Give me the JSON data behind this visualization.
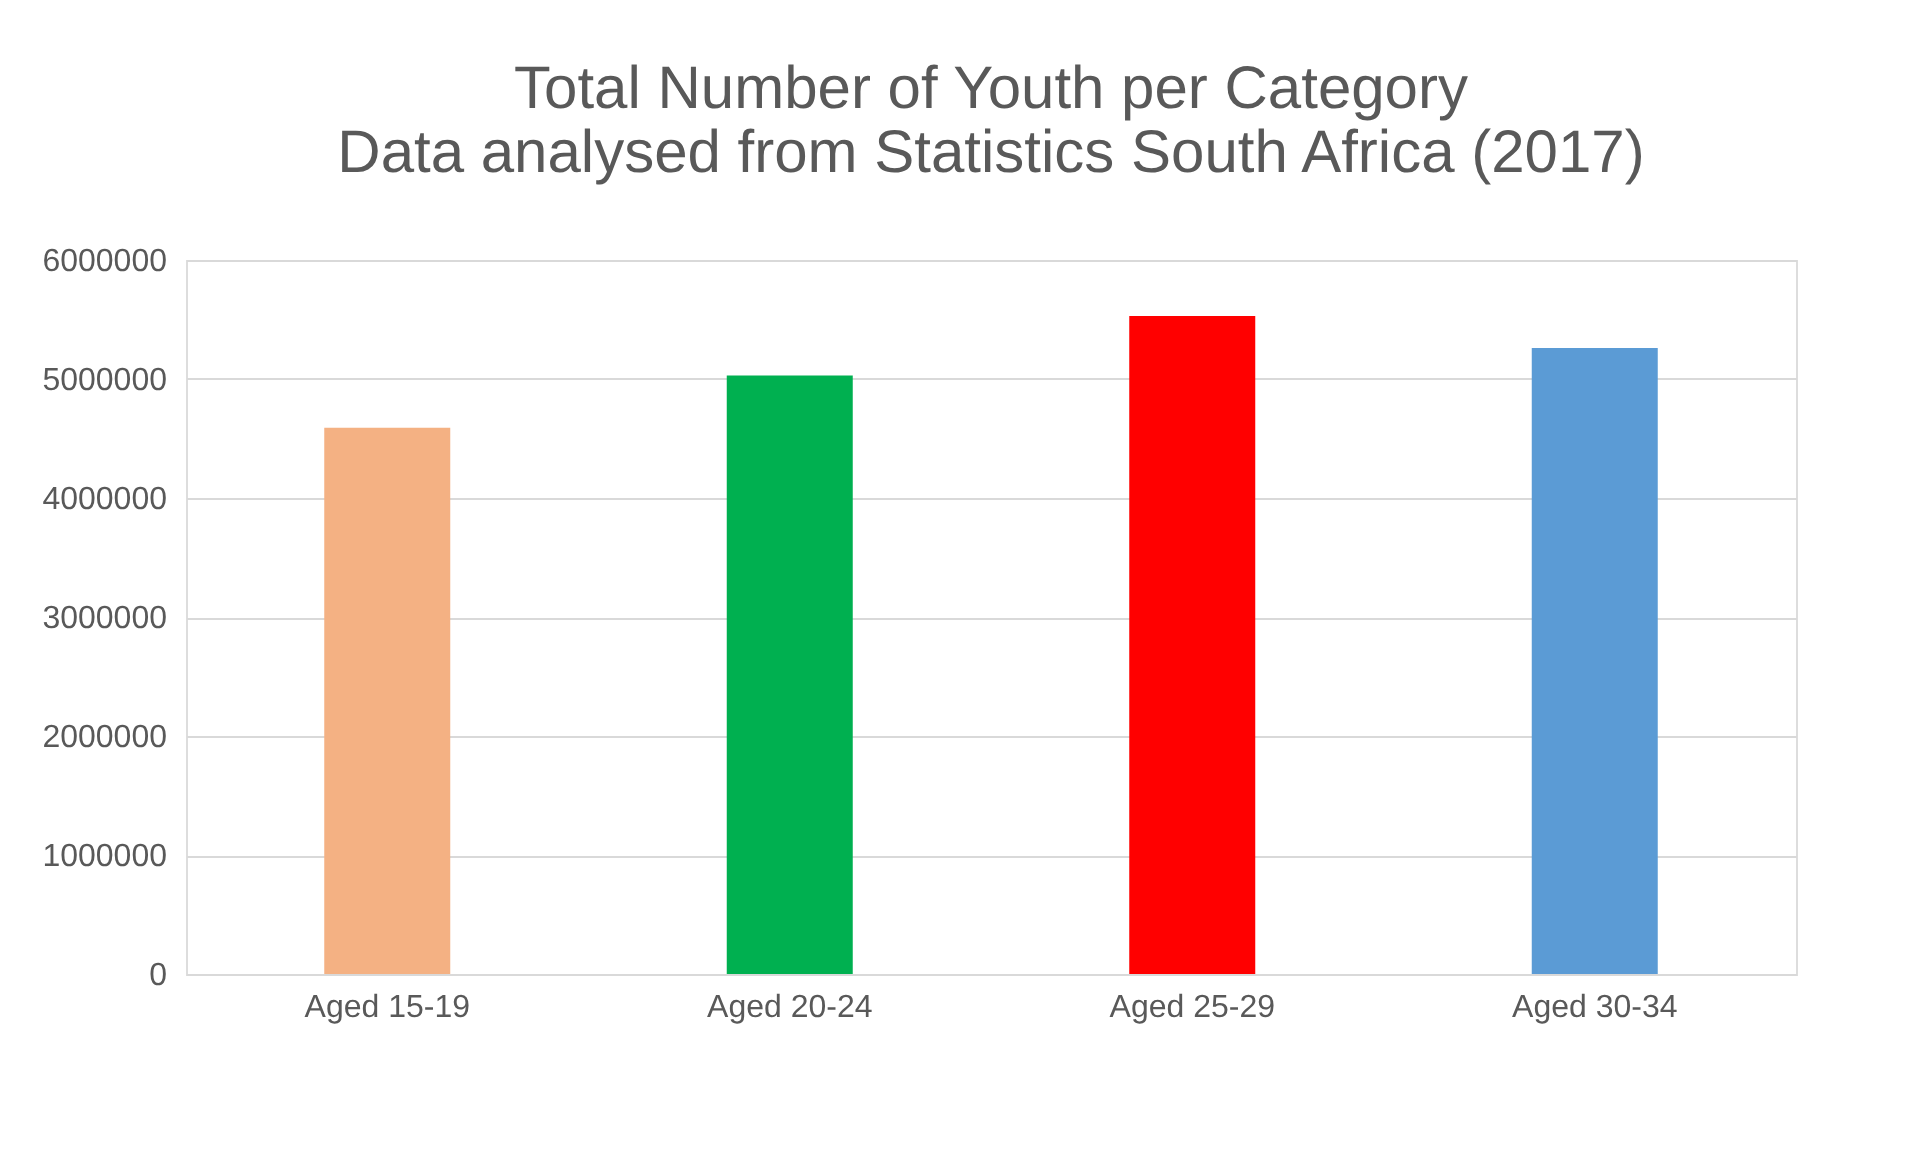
{
  "chart_data": {
    "type": "bar",
    "title": [
      "Total Number of Youth per Category",
      "Data analysed from Statistics South Africa (2017)"
    ],
    "categories": [
      "Aged 15-19",
      "Aged 20-24",
      "Aged 25-29",
      "Aged 30-34"
    ],
    "values": [
      4590000,
      5030000,
      5530000,
      5260000
    ],
    "colors": [
      "#f4b183",
      "#00b050",
      "#ff0000",
      "#5b9bd5"
    ],
    "ylim": [
      0,
      6000000
    ],
    "yticks": [
      0,
      1000000,
      2000000,
      3000000,
      4000000,
      5000000,
      6000000
    ],
    "grid": "y"
  }
}
